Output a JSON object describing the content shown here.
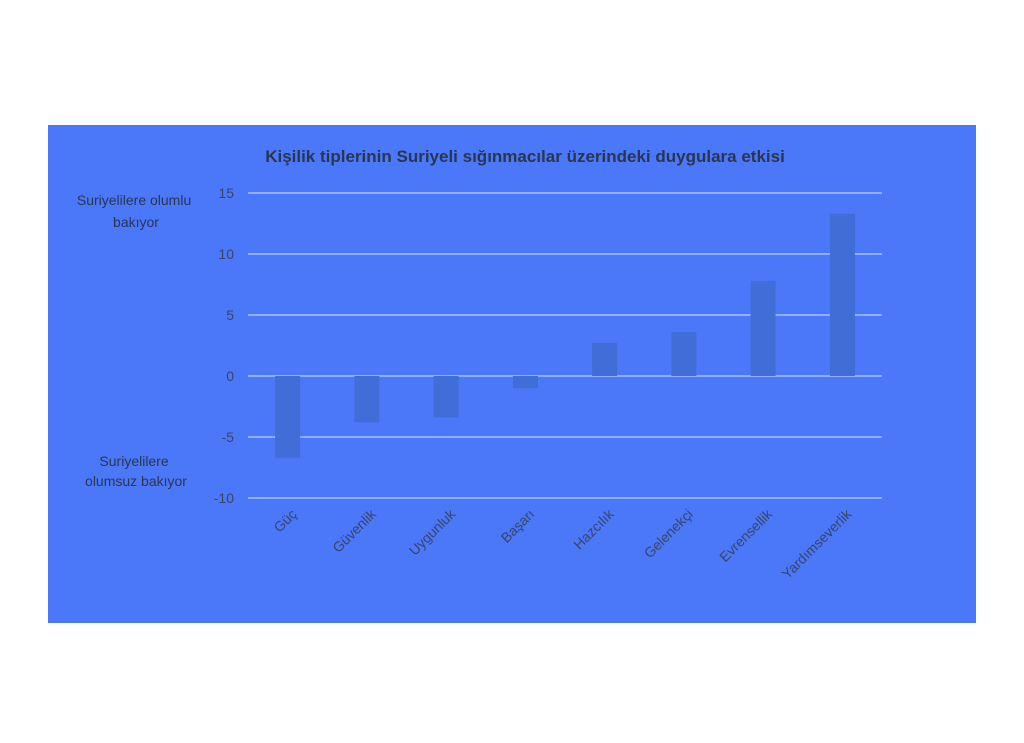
{
  "chart_data": {
    "type": "bar",
    "title": "Kişilik tiplerinin Suriyeli sığınmacılar üzerindeki duygulara etkisi",
    "categories": [
      "Güç",
      "Güvenlik",
      "Uygunluk",
      "Başarı",
      "Hazcılık",
      "Gelenekçi",
      "Evrensellik",
      "Yardımseverlik"
    ],
    "values": [
      -6.7,
      -3.8,
      -3.4,
      -1.0,
      2.7,
      3.6,
      7.8,
      13.3
    ],
    "ylim": [
      -10,
      15
    ],
    "yticks": [
      -10,
      -5,
      0,
      5,
      10,
      15
    ],
    "grid": true,
    "annotations": {
      "positive": [
        "Suriyelilere olumlu",
        "bakıyor"
      ],
      "negative": [
        "Suriyelilere",
        "olumsuz bakıyor"
      ]
    },
    "colors": {
      "background": "#4a78f9",
      "bar": "#3f6ed6",
      "grid": "#dbe4ff"
    }
  }
}
